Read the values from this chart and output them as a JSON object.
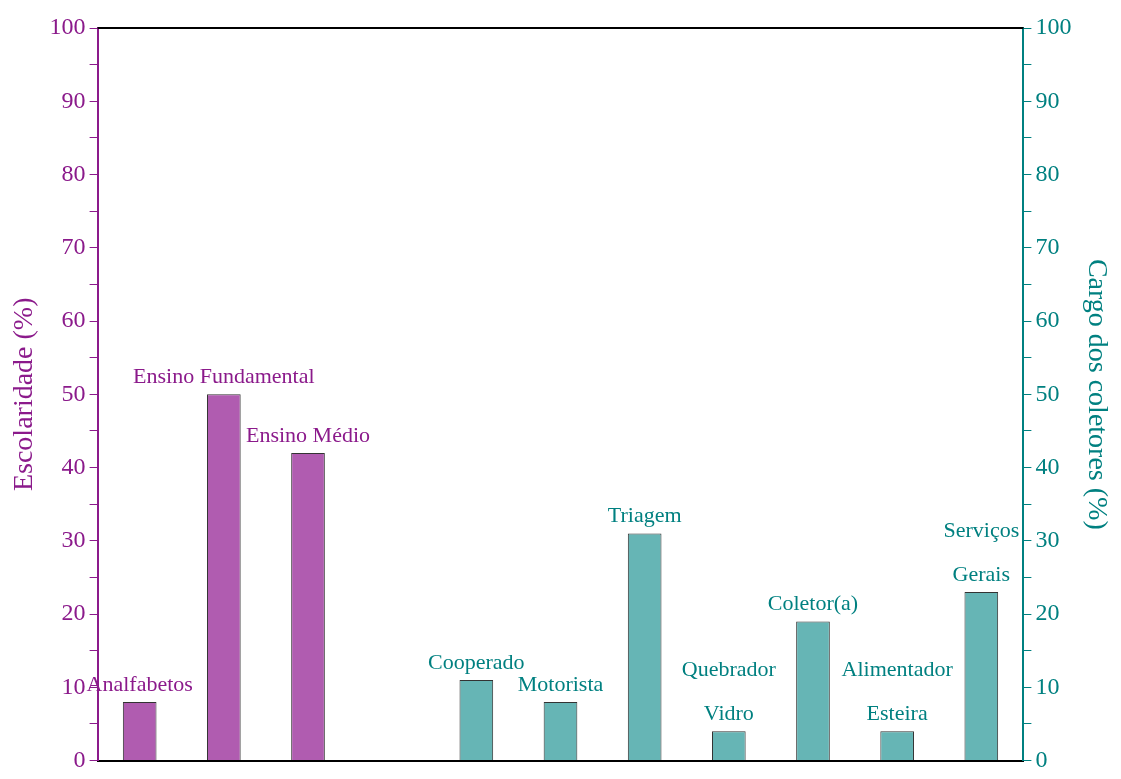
{
  "chart_data": {
    "type": "bar",
    "ylabel": "Escolaridade (%)",
    "y2label": "Cargo dos coletores (%)",
    "categories": [
      "Analfabetos",
      "Ensino Fundamental",
      "Ensino Médio",
      null,
      "Cooperado",
      "Motorista",
      "Triagem",
      "Quebrador\nVidro",
      "Coletor(a)",
      "Alimentador\nEsteira",
      "Serviços\nGerais"
    ],
    "series": [
      {
        "color": "#b05cb0",
        "values": [
          8,
          50,
          42,
          null,
          null,
          null,
          null,
          null,
          null,
          null,
          null
        ]
      },
      {
        "color": "#66b5b5",
        "axis": "y2",
        "values": [
          null,
          null,
          null,
          null,
          11,
          8,
          31,
          4,
          19,
          4,
          23
        ]
      }
    ],
    "ylim": [
      0,
      100
    ],
    "yticks": [
      0,
      {
        "value": 5,
        "label": null
      },
      10,
      {
        "value": 15,
        "label": null
      },
      20,
      {
        "value": 25,
        "label": null
      },
      30,
      {
        "value": 35,
        "label": null
      },
      40,
      {
        "value": 45,
        "label": null
      },
      50,
      {
        "value": 55,
        "label": null
      },
      60,
      {
        "value": 65,
        "label": null
      },
      70,
      {
        "value": 75,
        "label": null
      },
      80,
      {
        "value": 85,
        "label": null
      },
      90,
      {
        "value": 95,
        "label": null
      },
      100
    ],
    "y2lim": [
      0,
      100
    ],
    "y2ticks": [
      0,
      {
        "value": 5,
        "label": null
      },
      10,
      {
        "value": 15,
        "label": null
      },
      20,
      {
        "value": 25,
        "label": null
      },
      30,
      {
        "value": 35,
        "label": null
      },
      40,
      {
        "value": 45,
        "label": null
      },
      50,
      {
        "value": 55,
        "label": null
      },
      60,
      {
        "value": 65,
        "label": null
      },
      70,
      {
        "value": 75,
        "label": null
      },
      80,
      {
        "value": 85,
        "label": null
      },
      90,
      {
        "value": 95,
        "label": null
      },
      100
    ],
    "grid": false,
    "legend": false
  }
}
